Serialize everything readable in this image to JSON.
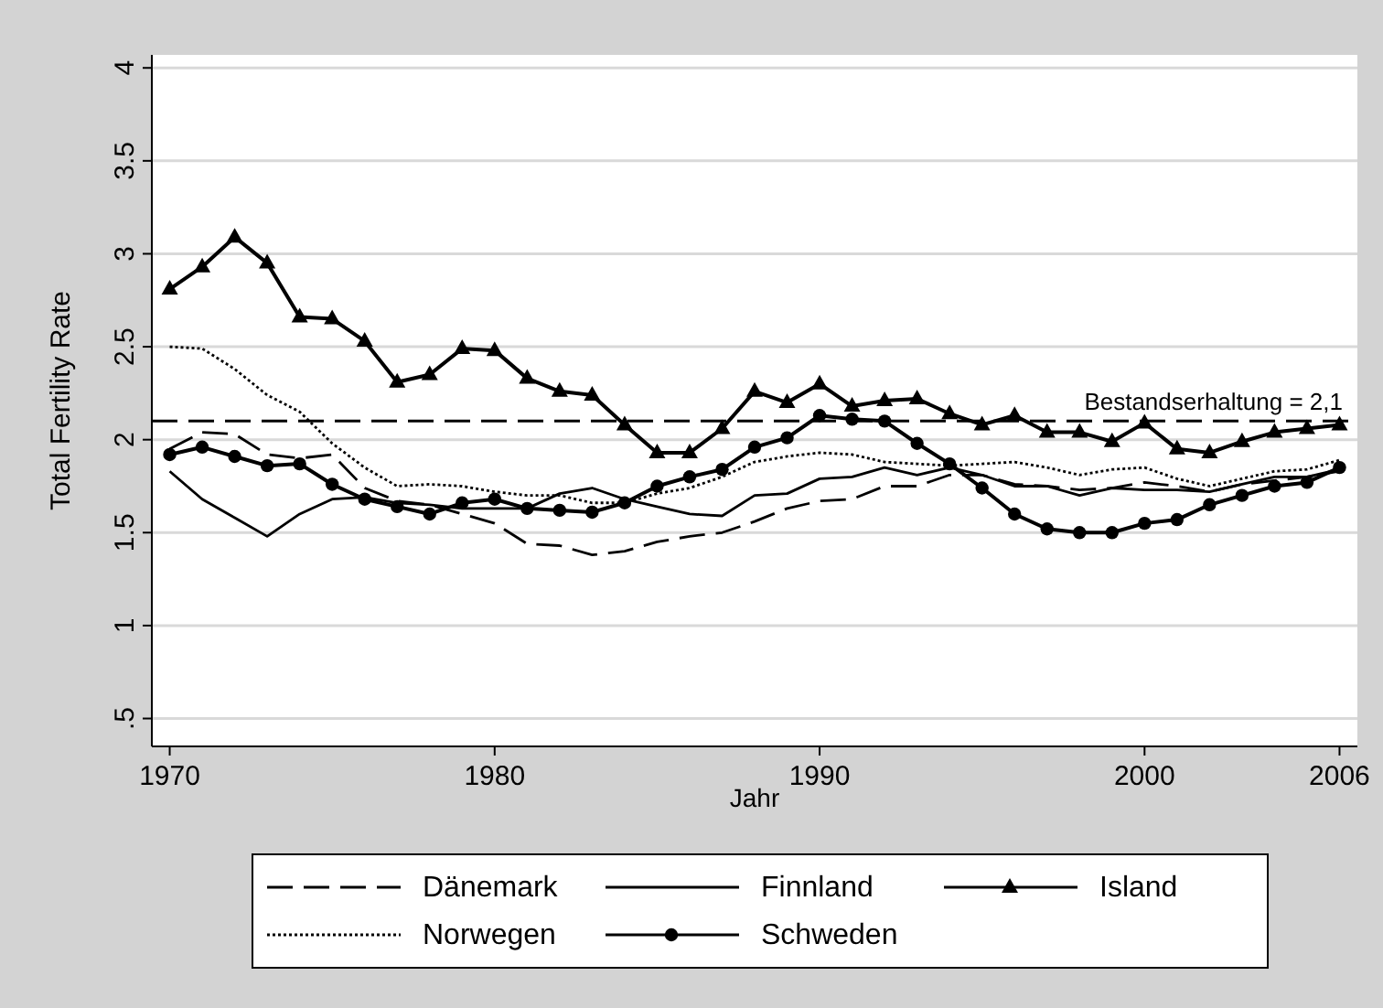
{
  "chart_data": {
    "type": "line",
    "xlabel": "Jahr",
    "ylabel": "Total Fertility Rate",
    "x": [
      1970,
      1971,
      1972,
      1973,
      1974,
      1975,
      1976,
      1977,
      1978,
      1979,
      1980,
      1981,
      1982,
      1983,
      1984,
      1985,
      1986,
      1987,
      1988,
      1989,
      1990,
      1991,
      1992,
      1993,
      1994,
      1995,
      1996,
      1997,
      1998,
      1999,
      2000,
      2001,
      2002,
      2003,
      2004,
      2005,
      2006
    ],
    "xlim": [
      1969.45,
      2006.55
    ],
    "xticks": [
      1970,
      1980,
      1990,
      2000,
      2006
    ],
    "ylim": [
      0.35,
      4.07
    ],
    "yticks": [
      {
        "value": 0.5,
        "label": ".5"
      },
      1,
      1.5,
      2,
      2.5,
      3,
      3.5,
      4
    ],
    "grid": "y",
    "legend": "bottom",
    "series": [
      {
        "name": "Dänemark",
        "color": "#000000",
        "line_style": "dashed",
        "marker": "none",
        "values": [
          1.95,
          2.04,
          2.03,
          1.92,
          1.9,
          1.92,
          1.74,
          1.67,
          1.65,
          1.6,
          1.55,
          1.44,
          1.43,
          1.38,
          1.4,
          1.45,
          1.48,
          1.5,
          1.56,
          1.63,
          1.67,
          1.68,
          1.75,
          1.75,
          1.81,
          1.81,
          1.76,
          1.75,
          1.73,
          1.74,
          1.77,
          1.75,
          1.72,
          1.76,
          1.78,
          1.8,
          1.83
        ]
      },
      {
        "name": "Finnland",
        "color": "#000000",
        "line_style": "solid",
        "marker": "none",
        "values": [
          1.83,
          1.68,
          1.58,
          1.48,
          1.6,
          1.68,
          1.69,
          1.66,
          1.65,
          1.63,
          1.63,
          1.63,
          1.71,
          1.74,
          1.68,
          1.64,
          1.6,
          1.59,
          1.7,
          1.71,
          1.79,
          1.8,
          1.85,
          1.81,
          1.85,
          1.81,
          1.75,
          1.75,
          1.7,
          1.74,
          1.73,
          1.73,
          1.72,
          1.76,
          1.8,
          1.8,
          1.84
        ]
      },
      {
        "name": "Island",
        "color": "#000000",
        "line_style": "solid",
        "marker": "triangle",
        "values": [
          2.81,
          2.93,
          3.09,
          2.95,
          2.66,
          2.65,
          2.53,
          2.31,
          2.35,
          2.49,
          2.48,
          2.33,
          2.26,
          2.24,
          2.08,
          1.93,
          1.93,
          2.06,
          2.26,
          2.2,
          2.3,
          2.18,
          2.21,
          2.22,
          2.14,
          2.08,
          2.13,
          2.04,
          2.04,
          1.99,
          2.09,
          1.95,
          1.93,
          1.99,
          2.04,
          2.06,
          2.08
        ]
      },
      {
        "name": "Norwegen",
        "color": "#000000",
        "line_style": "dotted",
        "marker": "none",
        "values": [
          2.5,
          2.49,
          2.38,
          2.24,
          2.15,
          1.98,
          1.85,
          1.75,
          1.76,
          1.75,
          1.72,
          1.7,
          1.7,
          1.66,
          1.66,
          1.71,
          1.74,
          1.8,
          1.88,
          1.91,
          1.93,
          1.92,
          1.88,
          1.87,
          1.86,
          1.87,
          1.88,
          1.85,
          1.81,
          1.84,
          1.85,
          1.79,
          1.75,
          1.79,
          1.83,
          1.84,
          1.89
        ]
      },
      {
        "name": "Schweden",
        "color": "#000000",
        "line_style": "solid",
        "marker": "circle",
        "values": [
          1.92,
          1.96,
          1.91,
          1.86,
          1.87,
          1.76,
          1.68,
          1.64,
          1.6,
          1.66,
          1.68,
          1.63,
          1.62,
          1.61,
          1.66,
          1.75,
          1.8,
          1.84,
          1.96,
          2.01,
          2.13,
          2.11,
          2.1,
          1.98,
          1.87,
          1.74,
          1.6,
          1.52,
          1.5,
          1.5,
          1.55,
          1.57,
          1.65,
          1.7,
          1.75,
          1.77,
          1.85
        ]
      }
    ],
    "ref_lines": [
      {
        "axis": "y",
        "value": 2.1,
        "label": "Bestandserhaltung = 2,1",
        "color": "#000000",
        "line_style": "dashed"
      }
    ]
  }
}
